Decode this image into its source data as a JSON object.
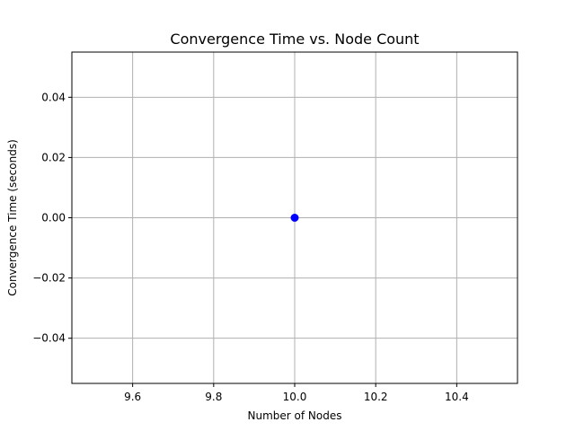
{
  "chart_data": {
    "type": "scatter",
    "title": "Convergence Time vs. Node Count",
    "xlabel": "Number of Nodes",
    "ylabel": "Convergence Time (seconds)",
    "xlim": [
      9.45,
      10.55
    ],
    "ylim": [
      -0.055,
      0.055
    ],
    "xticks": [
      9.6,
      9.8,
      10.0,
      10.2,
      10.4
    ],
    "xtick_labels": [
      "9.6",
      "9.8",
      "10.0",
      "10.2",
      "10.4"
    ],
    "yticks": [
      -0.04,
      -0.02,
      0.0,
      0.02,
      0.04
    ],
    "ytick_labels": [
      "−0.04",
      "−0.02",
      "0.00",
      "0.02",
      "0.04"
    ],
    "grid": true,
    "series": [
      {
        "points": [
          {
            "x": 10,
            "y": 0
          }
        ],
        "color": "#0000ff"
      }
    ]
  }
}
